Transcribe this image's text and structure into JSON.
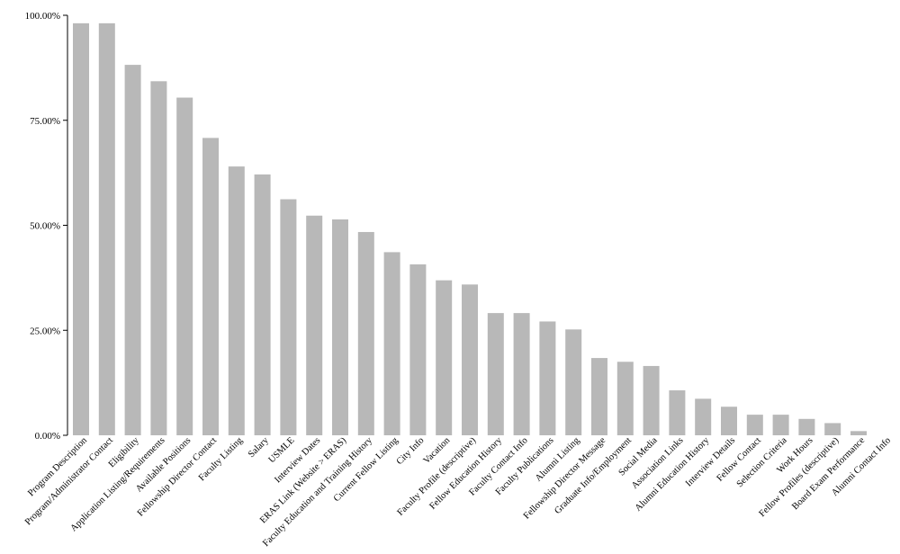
{
  "chart_data": {
    "type": "bar",
    "title": "",
    "xlabel": "",
    "ylabel": "",
    "ylim": [
      0,
      100
    ],
    "yticks": [
      "0.00%",
      "25.00%",
      "50.00%",
      "75.00%",
      "100.00%"
    ],
    "bar_color": "#b8b8b8",
    "axis_color": "#000000",
    "grid": false,
    "categories": [
      "Program Description",
      "Program/Administrator Contact",
      "Eligibility",
      "Application Listing/Requirements",
      "Available Positions",
      "Fellowship Director Contact",
      "Faculty Listing",
      "Salary",
      "USMLE",
      "Interview Dates",
      "ERAS Link (Website > ERAS)",
      "Faculty Education and Training History",
      "Current Fellow Listing",
      "City Info",
      "Vacation",
      "Faculty Profile (descriptive)",
      "Fellow Education History",
      "Faculty Contact Info",
      "Faculty Publications",
      "Alumni Listing",
      "Fellowship Director Message",
      "Graduate Info/Employment",
      "Social Media",
      "Association Links",
      "Alumni Education History",
      "Interview Details",
      "Fellow Contact",
      "Selection Criteria",
      "Work Hours",
      "Fellow Profiles (descriptive)",
      "Board Exam Performance",
      "Alumni Contact Info"
    ],
    "values": [
      98.1,
      98.1,
      88.2,
      84.3,
      80.4,
      70.8,
      64.0,
      62.1,
      56.2,
      52.3,
      51.4,
      48.4,
      43.6,
      40.7,
      36.9,
      35.9,
      29.1,
      29.1,
      27.1,
      25.2,
      18.4,
      17.5,
      16.5,
      10.7,
      8.7,
      6.8,
      4.9,
      4.9,
      3.9,
      2.9,
      1.0,
      0.0
    ]
  }
}
